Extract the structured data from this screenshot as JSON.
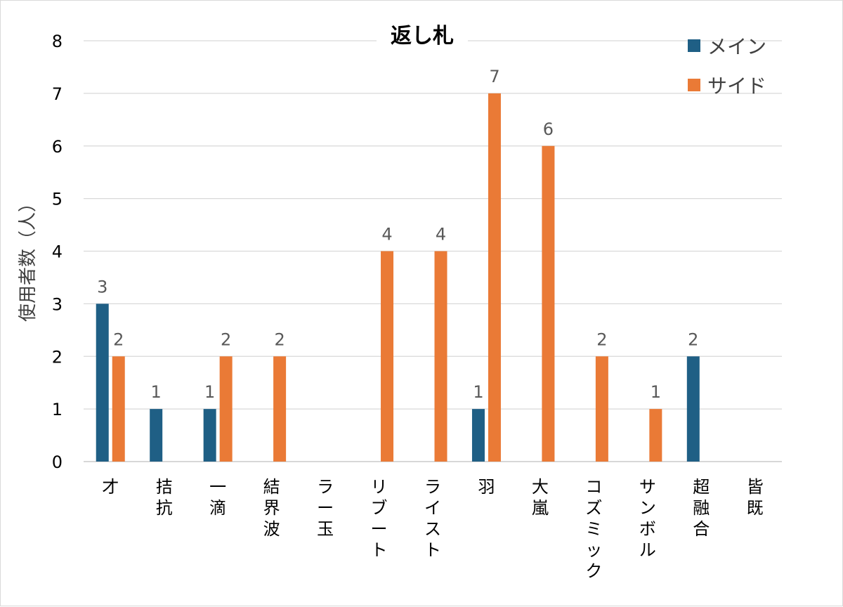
{
  "chart_data": {
    "type": "bar",
    "title": "返し札",
    "xlabel": "",
    "ylabel": "使用者数（人）",
    "ylim": [
      0,
      8
    ],
    "yticks": [
      0,
      1,
      2,
      3,
      4,
      5,
      6,
      7,
      8
    ],
    "grid": true,
    "legend_position": "top-right",
    "categories": [
      "才",
      "拮抗",
      "一滴",
      "結界波",
      "ラー玉",
      "リブート",
      "ライスト",
      "羽",
      "大嵐",
      "コズミック",
      "サンボル",
      "超融合",
      "皆既"
    ],
    "series": [
      {
        "name": "メイン",
        "color": "#1f5f85",
        "values": [
          3,
          1,
          1,
          null,
          null,
          null,
          null,
          1,
          null,
          null,
          null,
          2,
          null
        ]
      },
      {
        "name": "サイド",
        "color": "#ea7a36",
        "values": [
          2,
          null,
          2,
          2,
          null,
          4,
          4,
          7,
          6,
          2,
          1,
          null,
          null
        ]
      }
    ]
  }
}
